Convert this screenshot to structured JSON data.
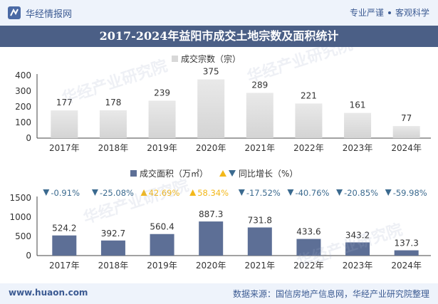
{
  "header": {
    "brand": "华经情报网",
    "slogan_left": "专业严谨",
    "slogan_right": "客观科学"
  },
  "title": "2017-2024年益阳市成交土地宗数及面积统计",
  "footer": {
    "website": "www.huaon.com",
    "source": "数据来源：国信房地产信息网，华经产业研究院整理"
  },
  "watermark": "华经产业研究院",
  "colors": {
    "bar_top": "#dedede",
    "bar_bottom": "#5d6f96",
    "up": "#f3b81a",
    "down": "#3b6a8f"
  },
  "chart_data": [
    {
      "type": "bar",
      "legend": "成交宗数（宗）",
      "categories": [
        "2017年",
        "2018年",
        "2019年",
        "2020年",
        "2021年",
        "2022年",
        "2023年",
        "2024年"
      ],
      "values": [
        177,
        178,
        239,
        375,
        289,
        221,
        161,
        77
      ],
      "value_labels": [
        "177",
        "178",
        "239",
        "375",
        "289",
        "221",
        "161",
        "77"
      ],
      "ylim": [
        0,
        400
      ],
      "yticks": [
        "0",
        "100",
        "200",
        "300",
        "400"
      ]
    },
    {
      "type": "bar",
      "legend": "成交面积（万㎡）",
      "legend2": "同比增长（%）",
      "categories": [
        "2017年",
        "2018年",
        "2019年",
        "2020年",
        "2021年",
        "2022年",
        "2023年",
        "2024年"
      ],
      "values": [
        524.2,
        392.7,
        560.4,
        887.3,
        731.8,
        433.6,
        343.2,
        137.3
      ],
      "value_labels": [
        "524.2",
        "392.7",
        "560.4",
        "887.3",
        "731.8",
        "433.6",
        "343.2",
        "137.3"
      ],
      "growth": [
        "-0.91%",
        "-25.08%",
        "42.69%",
        "58.34%",
        "-17.52%",
        "-40.76%",
        "-20.85%",
        "-59.98%"
      ],
      "growth_dir": [
        "down",
        "down",
        "up",
        "up",
        "down",
        "down",
        "down",
        "down"
      ],
      "ylim": [
        0,
        1500
      ],
      "yticks": [
        "0",
        "500",
        "1000",
        "1500"
      ]
    }
  ]
}
